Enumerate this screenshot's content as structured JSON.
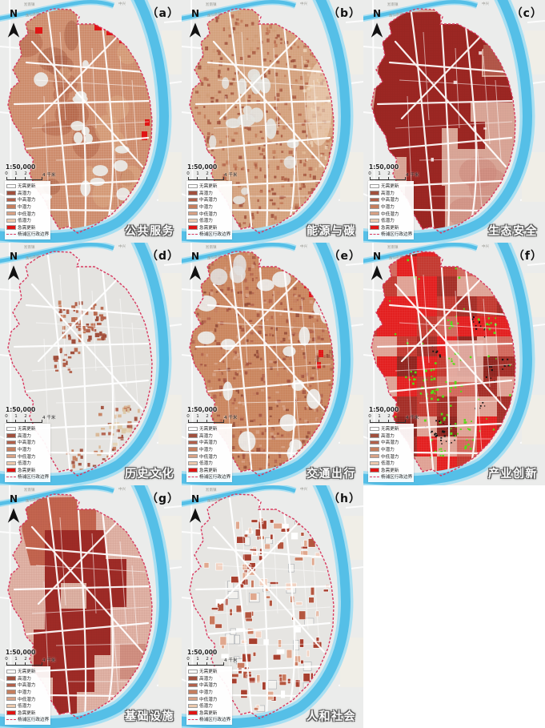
{
  "figure": {
    "north_label": "N",
    "scale_text": "1:50,000",
    "scale_ticks": [
      "0",
      "1",
      "2",
      "4 千米"
    ],
    "basemap_labels": [
      "淞南镇",
      "逸仙高架",
      "中兴"
    ],
    "legend": {
      "items": [
        {
          "label": "无需更新",
          "color": "#ffffff"
        },
        {
          "label": "高潜力",
          "color": "#a1503d"
        },
        {
          "label": "中高潜力",
          "color": "#b2604a"
        },
        {
          "label": "中潜力",
          "color": "#c57e5e"
        },
        {
          "label": "中低潜力",
          "color": "#d7a184"
        },
        {
          "label": "低潜力",
          "color": "#ecc9ad"
        },
        {
          "label": "急需更新",
          "color": "#e01414"
        }
      ],
      "boundary_label": "杨浦区行政边界",
      "boundary_color": "#d8395f"
    },
    "panels": [
      {
        "letter": "（a）",
        "title": "公共服务",
        "theme": "public_services"
      },
      {
        "letter": "（b）",
        "title": "能源与碳",
        "theme": "energy_carbon"
      },
      {
        "letter": "（c）",
        "title": "生态安全",
        "theme": "eco_security"
      },
      {
        "letter": "（d）",
        "title": "历史文化",
        "theme": "history_culture"
      },
      {
        "letter": "（e）",
        "title": "交通出行",
        "theme": "transport"
      },
      {
        "letter": "（f）",
        "title": "产业创新",
        "theme": "industry_innovation"
      },
      {
        "letter": "（g）",
        "title": "基础设施",
        "theme": "infrastructure"
      },
      {
        "letter": "（h）",
        "title": "人和社会",
        "theme": "people_society"
      }
    ],
    "colors": {
      "river": "#55bfe7",
      "river_edge": "#a8dff2",
      "basemap": "#ebeceb",
      "dark_block": "#9c2723",
      "urgent_red": "#e01414",
      "innovation_red": "#e32020",
      "green_dot": "#55dd17",
      "black_dot": "#151515",
      "boundary_dash": "#d8395f"
    }
  }
}
